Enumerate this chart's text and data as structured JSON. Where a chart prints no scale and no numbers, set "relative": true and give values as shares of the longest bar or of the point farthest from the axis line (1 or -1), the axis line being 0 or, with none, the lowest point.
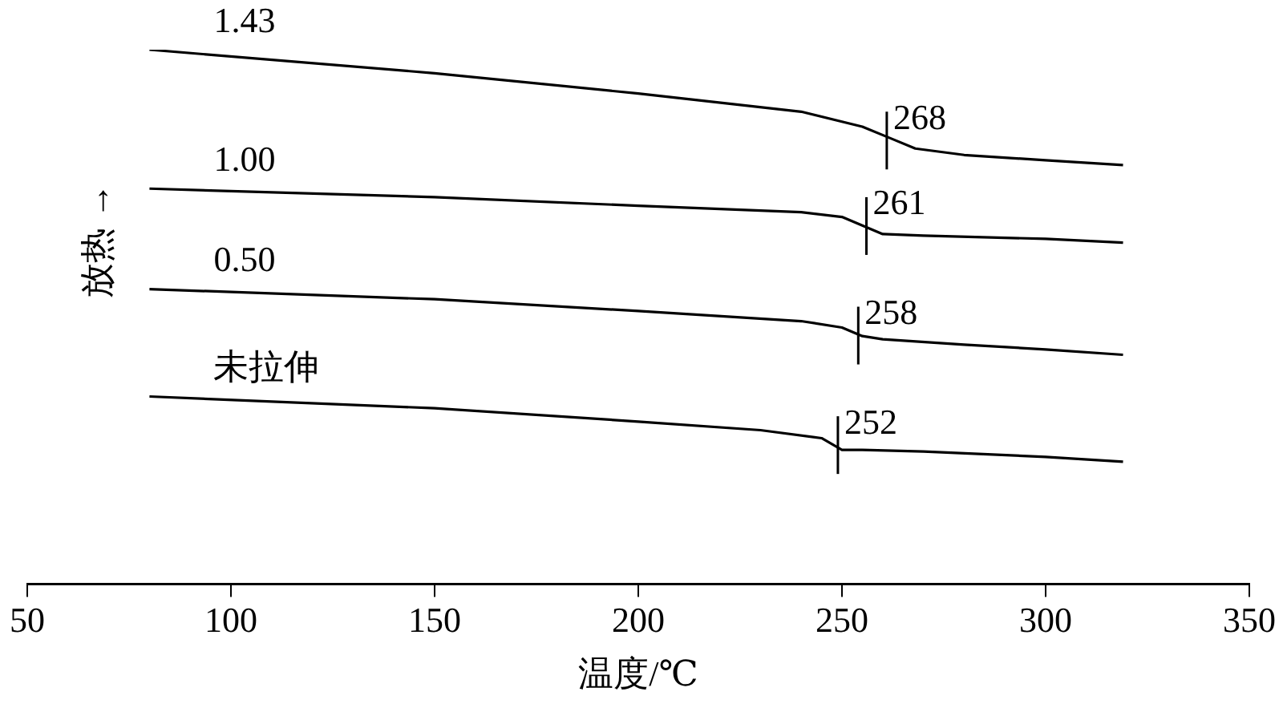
{
  "chart_data": {
    "type": "line",
    "relative": true,
    "xlabel": "温度/℃",
    "ylabel": "放热 →",
    "xlim": [
      50,
      350
    ],
    "xticks": [
      50,
      100,
      150,
      200,
      250,
      300,
      350
    ],
    "grid": false,
    "legend": false,
    "marker": "none",
    "line_style": "solid",
    "tick_labels": "x",
    "series": [
      {
        "name": "1.43",
        "color": "#000000",
        "x": [
          80,
          150,
          200,
          240,
          255,
          262,
          268,
          280,
          300,
          319
        ],
        "values": [
          1.0,
          0.956,
          0.918,
          0.884,
          0.856,
          0.834,
          0.815,
          0.803,
          0.793,
          0.784
        ]
      },
      {
        "name": "1.00",
        "color": "#000000",
        "x": [
          80,
          150,
          200,
          240,
          250,
          255,
          260,
          270,
          300,
          319
        ],
        "values": [
          0.74,
          0.724,
          0.708,
          0.696,
          0.687,
          0.671,
          0.655,
          0.652,
          0.646,
          0.639
        ]
      },
      {
        "name": "0.50",
        "color": "#000000",
        "x": [
          80,
          150,
          200,
          240,
          250,
          255,
          260,
          280,
          300,
          319
        ],
        "values": [
          0.552,
          0.533,
          0.511,
          0.492,
          0.48,
          0.464,
          0.458,
          0.448,
          0.439,
          0.429
        ]
      },
      {
        "name": "未拉伸",
        "color": "#000000",
        "x": [
          80,
          150,
          200,
          230,
          245,
          250,
          255,
          270,
          300,
          319
        ],
        "values": [
          0.351,
          0.329,
          0.304,
          0.288,
          0.273,
          0.251,
          0.251,
          0.248,
          0.238,
          0.229
        ]
      }
    ],
    "annotations": [
      {
        "text": "268",
        "x": 261,
        "y": 0.83
      },
      {
        "text": "261",
        "x": 256,
        "y": 0.67
      },
      {
        "text": "258",
        "x": 254,
        "y": 0.465
      },
      {
        "text": "252",
        "x": 249,
        "y": 0.26
      }
    ]
  }
}
